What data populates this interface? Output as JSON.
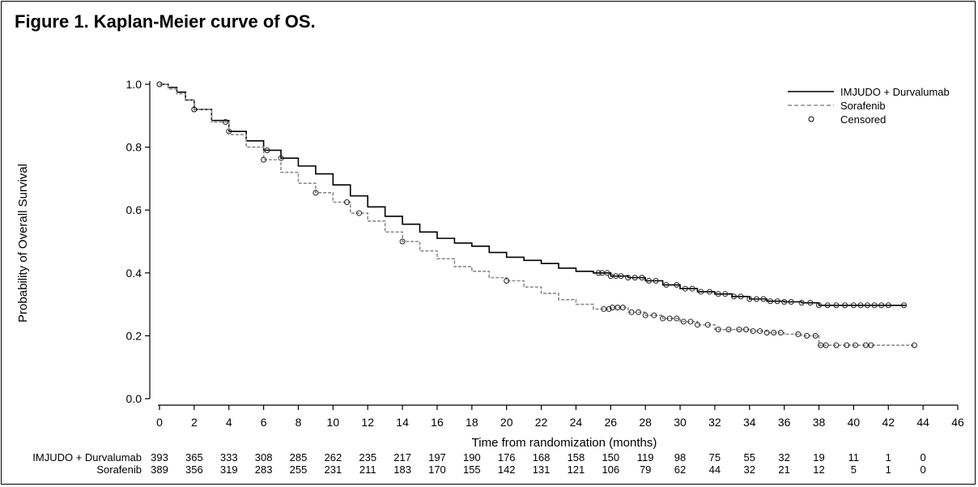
{
  "figure_title": "Figure 1. Kaplan-Meier curve of OS.",
  "chart_data": {
    "type": "line",
    "subtype": "kaplan-meier",
    "xlabel": "Time from randomization (months)",
    "ylabel": "Probability of Overall Survival",
    "xlim": [
      0,
      46
    ],
    "ylim": [
      0,
      1.0
    ],
    "x_ticks": [
      0,
      2,
      4,
      6,
      8,
      10,
      12,
      14,
      16,
      18,
      20,
      22,
      24,
      26,
      28,
      30,
      32,
      34,
      36,
      38,
      40,
      42,
      44,
      46
    ],
    "y_ticks": [
      "0.0",
      "0.2",
      "0.4",
      "0.6",
      "0.8",
      "1.0"
    ],
    "grid": false,
    "legend_position": "top-right",
    "legend": [
      {
        "label": "IMJUDO + Durvalumab",
        "style": "solid"
      },
      {
        "label": "Sorafenib",
        "style": "dashed"
      },
      {
        "label": "Censored",
        "style": "marker"
      }
    ],
    "series": [
      {
        "name": "IMJUDO + Durvalumab",
        "color": "#000000",
        "style": "solid",
        "x": [
          0,
          0.5,
          1,
          1.5,
          2,
          3,
          4,
          5,
          6,
          7,
          8,
          9,
          10,
          11,
          12,
          13,
          14,
          15,
          16,
          17,
          18,
          19,
          20,
          21,
          22,
          23,
          24,
          25,
          26,
          27,
          28,
          29,
          30,
          31,
          32,
          33,
          34,
          35,
          36,
          37,
          38,
          39,
          40,
          41,
          42,
          43
        ],
        "y": [
          1.0,
          0.99,
          0.975,
          0.95,
          0.92,
          0.885,
          0.85,
          0.82,
          0.79,
          0.765,
          0.74,
          0.715,
          0.68,
          0.645,
          0.61,
          0.58,
          0.555,
          0.53,
          0.51,
          0.495,
          0.485,
          0.465,
          0.45,
          0.44,
          0.43,
          0.415,
          0.405,
          0.4,
          0.39,
          0.385,
          0.375,
          0.362,
          0.35,
          0.34,
          0.333,
          0.325,
          0.317,
          0.31,
          0.308,
          0.305,
          0.297,
          0.297,
          0.297,
          0.297,
          0.297,
          0.297
        ],
        "censored": [
          0,
          2,
          4,
          6.2,
          7,
          25.3,
          25.5,
          25.8,
          26,
          26.3,
          26.6,
          27,
          27.4,
          27.8,
          28.2,
          28.6,
          29.2,
          29.8,
          30.3,
          30.7,
          31.2,
          31.7,
          32.2,
          32.6,
          33.1,
          33.5,
          34,
          34.4,
          34.8,
          35.2,
          35.6,
          36,
          36.4,
          37,
          37.5,
          38,
          38.5,
          39,
          39.5,
          40,
          40.4,
          40.8,
          41.2,
          41.6,
          42,
          42.9
        ]
      },
      {
        "name": "Sorafenib",
        "color": "#8c8c8c",
        "style": "dashed",
        "x": [
          0,
          0.5,
          1,
          1.5,
          2,
          3,
          4,
          5,
          6,
          7,
          8,
          9,
          10,
          11,
          12,
          13,
          14,
          15,
          16,
          17,
          18,
          19,
          20,
          21,
          22,
          23,
          24,
          25,
          26,
          27,
          28,
          29,
          30,
          31,
          32,
          33,
          34,
          35,
          36,
          37,
          38,
          39,
          40,
          41,
          42,
          43,
          43.5
        ],
        "y": [
          1.0,
          0.985,
          0.97,
          0.95,
          0.92,
          0.88,
          0.84,
          0.8,
          0.76,
          0.72,
          0.685,
          0.655,
          0.625,
          0.59,
          0.565,
          0.53,
          0.5,
          0.47,
          0.445,
          0.42,
          0.405,
          0.385,
          0.375,
          0.355,
          0.335,
          0.315,
          0.3,
          0.285,
          0.29,
          0.275,
          0.265,
          0.255,
          0.245,
          0.235,
          0.22,
          0.22,
          0.215,
          0.21,
          0.205,
          0.2,
          0.17,
          0.17,
          0.17,
          0.17,
          0.17,
          0.17,
          0.17
        ],
        "censored": [
          0,
          2,
          3.8,
          6,
          9,
          10.8,
          11.5,
          14,
          20,
          25.6,
          25.9,
          26.1,
          26.4,
          26.7,
          27.2,
          27.6,
          28,
          28.5,
          29,
          29.4,
          29.8,
          30.2,
          30.6,
          31,
          31.6,
          32.2,
          32.8,
          33.4,
          33.8,
          34.2,
          34.6,
          35,
          35.4,
          35.8,
          36.8,
          37.3,
          37.8,
          38.1,
          38.4,
          39,
          39.6,
          40.1,
          40.7,
          41,
          43.5
        ]
      }
    ],
    "risk_table": {
      "times": [
        0,
        2,
        4,
        6,
        8,
        10,
        12,
        14,
        16,
        18,
        20,
        22,
        24,
        26,
        28,
        30,
        32,
        34,
        36,
        38,
        40,
        42,
        44
      ],
      "rows": [
        {
          "name": "IMJUDO + Durvalumab",
          "counts": [
            "393",
            "365",
            "333",
            "308",
            "285",
            "262",
            "235",
            "217",
            "197",
            "190",
            "176",
            "168",
            "158",
            "150",
            "119",
            "98",
            "75",
            "55",
            "32",
            "19",
            "11",
            "1",
            "0"
          ]
        },
        {
          "name": "Sorafenib",
          "counts": [
            "389",
            "356",
            "319",
            "283",
            "255",
            "231",
            "211",
            "183",
            "170",
            "155",
            "142",
            "131",
            "121",
            "106",
            "79",
            "62",
            "44",
            "32",
            "21",
            "12",
            "5",
            "1",
            "0"
          ]
        }
      ]
    }
  }
}
